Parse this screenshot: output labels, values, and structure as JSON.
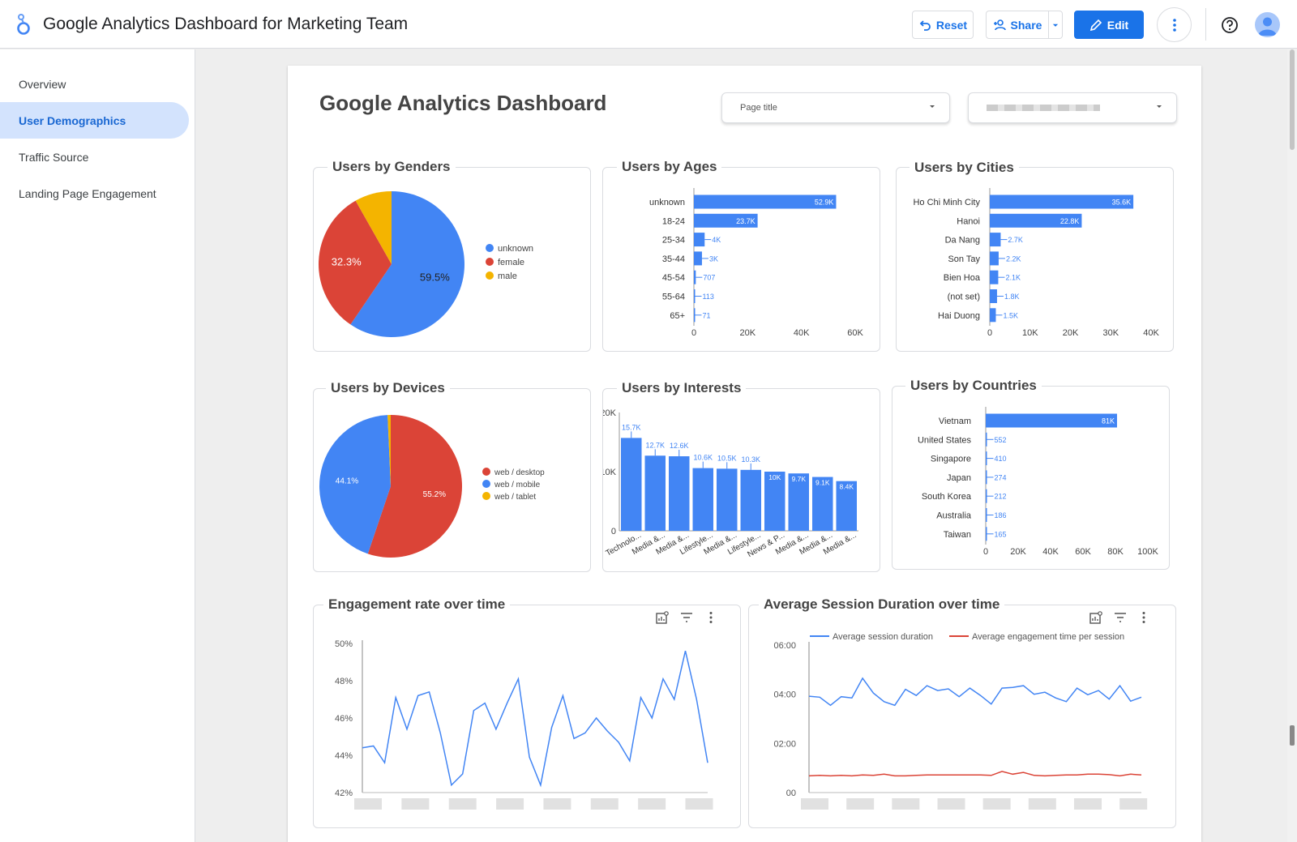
{
  "app": {
    "title": "Google Analytics Dashboard for Marketing Team"
  },
  "toolbar": {
    "reset_label": "Reset",
    "share_label": "Share",
    "edit_label": "Edit"
  },
  "sidebar": {
    "items": [
      {
        "label": "Overview",
        "active": false
      },
      {
        "label": "User Demographics",
        "active": true
      },
      {
        "label": "Traffic Source",
        "active": false
      },
      {
        "label": "Landing Page Engagement",
        "active": false
      }
    ]
  },
  "dashboard": {
    "title": "Google Analytics Dashboard"
  },
  "filters": {
    "page_title": "Page title"
  },
  "colors": {
    "blue": "#4285f4",
    "red": "#db4437",
    "yellow": "#f4b400",
    "accent": "#1a73e8"
  },
  "chart_data": [
    {
      "id": "genders",
      "type": "pie",
      "title": "Users by Genders",
      "slices": [
        {
          "label": "unknown",
          "pct": 59.5,
          "color": "#4285f4"
        },
        {
          "label": "female",
          "pct": 32.3,
          "color": "#db4437"
        },
        {
          "label": "male",
          "pct": 8.2,
          "color": "#f4b400"
        }
      ]
    },
    {
      "id": "ages",
      "type": "bar",
      "orientation": "horizontal",
      "title": "Users by Ages",
      "categories": [
        "unknown",
        "18-24",
        "25-34",
        "35-44",
        "45-54",
        "55-64",
        "65+"
      ],
      "values": [
        52900,
        23700,
        4000,
        3000,
        707,
        113,
        71
      ],
      "labels": [
        "52.9K",
        "23.7K",
        "4K",
        "3K",
        "707",
        "113",
        "71"
      ],
      "xlim": [
        0,
        60000
      ],
      "xticks": [
        "0",
        "20K",
        "40K",
        "60K"
      ]
    },
    {
      "id": "cities",
      "type": "bar",
      "orientation": "horizontal",
      "title": "Users by Cities",
      "categories": [
        "Ho Chi Minh City",
        "Hanoi",
        "Da Nang",
        "Son Tay",
        "Bien Hoa",
        "(not set)",
        "Hai Duong"
      ],
      "values": [
        35600,
        22800,
        2700,
        2200,
        2100,
        1800,
        1500
      ],
      "labels": [
        "35.6K",
        "22.8K",
        "2.7K",
        "2.2K",
        "2.1K",
        "1.8K",
        "1.5K"
      ],
      "xlim": [
        0,
        40000
      ],
      "xticks": [
        "0",
        "10K",
        "20K",
        "30K",
        "40K"
      ]
    },
    {
      "id": "devices",
      "type": "pie",
      "title": "Users by Devices",
      "slices": [
        {
          "label": "web / desktop",
          "pct": 55.2,
          "color": "#db4437"
        },
        {
          "label": "web / mobile",
          "pct": 44.1,
          "color": "#4285f4"
        },
        {
          "label": "web / tablet",
          "pct": 0.7,
          "color": "#f4b400"
        }
      ]
    },
    {
      "id": "interests",
      "type": "bar",
      "orientation": "vertical",
      "title": "Users by Interests",
      "categories": [
        "Technolo...",
        "Media &...",
        "Media &...",
        "Lifestyle...",
        "Media &...",
        "Lifestyle...",
        "News & P...",
        "Media &...",
        "Media &...",
        "Media &..."
      ],
      "values": [
        15700,
        12700,
        12600,
        10600,
        10500,
        10300,
        10000,
        9700,
        9100,
        8400
      ],
      "labels": [
        "15.7K",
        "12.7K",
        "12.6K",
        "10.6K",
        "10.5K",
        "10.3K",
        "10K",
        "9.7K",
        "9.1K",
        "8.4K"
      ],
      "ylim": [
        0,
        20000
      ],
      "yticks": [
        "0",
        "10K",
        "20K"
      ]
    },
    {
      "id": "countries",
      "type": "bar",
      "orientation": "horizontal",
      "title": "Users by Countries",
      "categories": [
        "Vietnam",
        "United States",
        "Singapore",
        "Japan",
        "South Korea",
        "Australia",
        "Taiwan"
      ],
      "values": [
        81000,
        552,
        410,
        274,
        212,
        186,
        165
      ],
      "labels": [
        "81K",
        "552",
        "410",
        "274",
        "212",
        "186",
        "165"
      ],
      "xlim": [
        0,
        100000
      ],
      "xticks": [
        "0",
        "20K",
        "40K",
        "60K",
        "80K",
        "100K"
      ]
    },
    {
      "id": "engagement",
      "type": "line",
      "title": "Engagement rate over time",
      "ylim": [
        42,
        50
      ],
      "yticks": [
        "42%",
        "44%",
        "46%",
        "48%",
        "50%"
      ],
      "series": [
        {
          "color": "#4285f4",
          "values": [
            44.4,
            44.5,
            43.6,
            47.1,
            45.4,
            47.2,
            47.4,
            45.2,
            42.4,
            43.0,
            46.4,
            46.8,
            45.4,
            46.8,
            48.1,
            43.9,
            42.4,
            45.5,
            47.2,
            44.9,
            45.2,
            46.0,
            45.3,
            44.7,
            43.7,
            47.1,
            46.0,
            48.1,
            47.0,
            49.6,
            47.0,
            43.6
          ]
        }
      ]
    },
    {
      "id": "session",
      "type": "line",
      "title": "Average Session Duration over time",
      "ylim": [
        0,
        6
      ],
      "yticks": [
        "00",
        "02:00",
        "04:00",
        "06:00"
      ],
      "series": [
        {
          "name": "Average session duration",
          "color": "#4285f4",
          "values": [
            3.92,
            3.88,
            3.55,
            3.9,
            3.85,
            4.65,
            4.05,
            3.7,
            3.55,
            4.2,
            3.95,
            4.35,
            4.15,
            4.22,
            3.9,
            4.25,
            3.95,
            3.6,
            4.25,
            4.28,
            4.35,
            4.0,
            4.08,
            3.85,
            3.7,
            4.25,
            3.98,
            4.15,
            3.8,
            4.35,
            3.72,
            3.88
          ]
        },
        {
          "name": "Average engagement time per session",
          "color": "#db4437",
          "values": [
            0.68,
            0.7,
            0.68,
            0.7,
            0.68,
            0.72,
            0.7,
            0.75,
            0.68,
            0.68,
            0.7,
            0.72,
            0.72,
            0.72,
            0.72,
            0.72,
            0.72,
            0.7,
            0.86,
            0.75,
            0.82,
            0.7,
            0.68,
            0.7,
            0.72,
            0.72,
            0.75,
            0.75,
            0.73,
            0.68,
            0.75,
            0.72
          ]
        }
      ]
    }
  ]
}
